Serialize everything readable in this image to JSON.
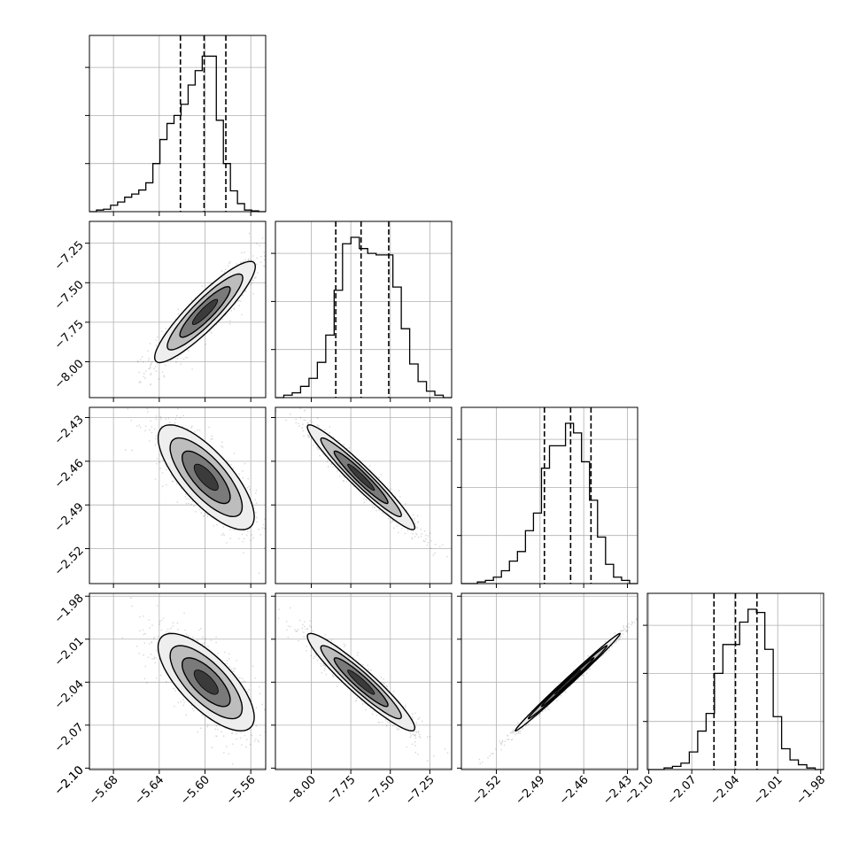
{
  "figure": {
    "type": "corner-plot",
    "panels": 4
  },
  "chart_data": {
    "type": "corner",
    "parameters": [
      {
        "ticks": [
          -5.68,
          -5.64,
          -5.6,
          -5.56
        ],
        "tick_labels": [
          "−5.68",
          "−5.64",
          "−5.60",
          "−5.56"
        ],
        "range": [
          -5.701,
          -5.547
        ],
        "quantiles": [
          -5.6215,
          -5.6008,
          -5.5818
        ],
        "hist_peak": 1.0,
        "hist": [
          0.0,
          0.01,
          0.015,
          0.04,
          0.06,
          0.09,
          0.11,
          0.135,
          0.18,
          0.3,
          0.45,
          0.55,
          0.6,
          0.67,
          0.79,
          0.88,
          0.97,
          0.97,
          0.57,
          0.3,
          0.13,
          0.05,
          0.01,
          0.005,
          0.0
        ]
      },
      {
        "ticks": [
          -8.0,
          -7.75,
          -7.5,
          -7.25
        ],
        "tick_labels": [
          "−8.00",
          "−7.75",
          "−7.50",
          "−7.25"
        ],
        "range": [
          -8.227,
          -7.112
        ],
        "quantiles": [
          -7.845,
          -7.685,
          -7.51
        ],
        "hist_peak": 1.0,
        "hist": [
          0.0,
          0.015,
          0.03,
          0.07,
          0.12,
          0.22,
          0.39,
          0.67,
          0.96,
          1.0,
          0.93,
          0.9,
          0.89,
          0.89,
          0.69,
          0.43,
          0.21,
          0.1,
          0.04,
          0.015,
          0.0
        ]
      },
      {
        "ticks": [
          -2.52,
          -2.49,
          -2.46,
          -2.43
        ],
        "tick_labels": [
          "−2.52",
          "−2.49",
          "−2.46",
          "−2.43"
        ],
        "range": [
          -2.544,
          -2.423
        ],
        "quantiles": [
          -2.487,
          -2.469,
          -2.455
        ],
        "hist_peak": 1.0,
        "hist": [
          0.0,
          0.0,
          0.01,
          0.02,
          0.04,
          0.08,
          0.14,
          0.2,
          0.33,
          0.44,
          0.72,
          0.86,
          0.86,
          1.0,
          0.94,
          0.76,
          0.52,
          0.29,
          0.12,
          0.04,
          0.02,
          0.0
        ]
      },
      {
        "ticks": [
          -2.1,
          -2.07,
          -2.04,
          -2.01,
          -1.98
        ],
        "tick_labels": [
          "−2.10",
          "−2.07",
          "−2.04",
          "−2.01",
          "−1.98"
        ],
        "range": [
          -2.101,
          -1.978
        ],
        "quantiles": [
          -2.0545,
          -2.0395,
          -2.0245
        ],
        "hist_peak": 1.0,
        "hist": [
          0.0,
          0.0,
          0.01,
          0.02,
          0.04,
          0.11,
          0.24,
          0.35,
          0.6,
          0.78,
          0.78,
          0.92,
          1.0,
          0.98,
          0.75,
          0.33,
          0.13,
          0.06,
          0.03,
          0.01,
          0.0
        ]
      }
    ],
    "contours": [
      {
        "pair": [
          0,
          1
        ],
        "rho": 0.9,
        "mean": [
          -5.6,
          -7.685
        ],
        "sd": [
          0.022,
          0.16
        ]
      },
      {
        "pair": [
          0,
          2
        ],
        "rho": -0.75,
        "mean": [
          -5.599,
          -2.471
        ],
        "sd": [
          0.021,
          0.018
        ]
      },
      {
        "pair": [
          1,
          2
        ],
        "rho": -0.96,
        "mean": [
          -7.685,
          -2.471
        ],
        "sd": [
          0.17,
          0.018
        ]
      },
      {
        "pair": [
          0,
          3
        ],
        "rho": -0.72,
        "mean": [
          -5.599,
          -2.04
        ],
        "sd": [
          0.021,
          0.017
        ]
      },
      {
        "pair": [
          1,
          3
        ],
        "rho": -0.94,
        "mean": [
          -7.685,
          -2.04
        ],
        "sd": [
          0.17,
          0.017
        ]
      },
      {
        "pair": [
          2,
          3
        ],
        "rho": 0.995,
        "mean": [
          -2.471,
          -2.04
        ],
        "sd": [
          0.018,
          0.017
        ]
      }
    ],
    "hist_hticks": [
      0.3,
      0.6,
      0.9
    ],
    "contour_levels": [
      0.5,
      1.0,
      1.5,
      2.0
    ],
    "grid": true,
    "legend": "none"
  }
}
